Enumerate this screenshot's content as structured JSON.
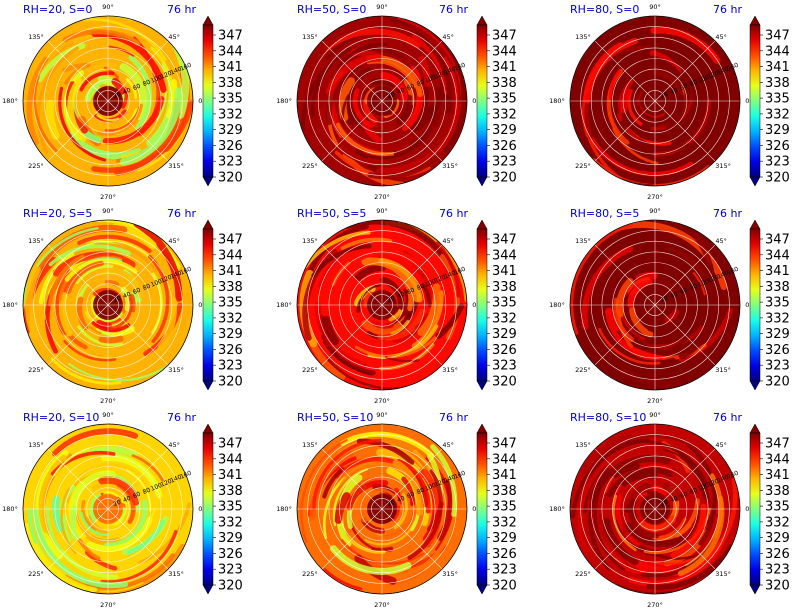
{
  "chart_data": {
    "type": "heatmap",
    "projection": "polar",
    "layout": "3x3 grid",
    "colormap": "jet",
    "colorbar": {
      "ticks": [
        "347",
        "344",
        "341",
        "338",
        "335",
        "332",
        "329",
        "326",
        "323",
        "320"
      ],
      "range": [
        320,
        350
      ],
      "extend": "both"
    },
    "angular_ticks": [
      "90°",
      "45°",
      "0°",
      "315°",
      "270°",
      "225°",
      "180°",
      "135°"
    ],
    "radial_ticks": [
      "20",
      "40",
      "60",
      "80",
      "100",
      "120",
      "140",
      "160"
    ],
    "panels": [
      {
        "title": "RH=20, S=0",
        "time": "76 hr",
        "dominant_value": 341,
        "core_value": 350
      },
      {
        "title": "RH=50, S=0",
        "time": "76 hr",
        "dominant_value": 349,
        "core_value": 350
      },
      {
        "title": "RH=80, S=0",
        "time": "76 hr",
        "dominant_value": 350,
        "core_value": 350
      },
      {
        "title": "RH=20, S=5",
        "time": "76 hr",
        "dominant_value": 341,
        "core_value": 350
      },
      {
        "title": "RH=50, S=5",
        "time": "76 hr",
        "dominant_value": 346,
        "core_value": 350
      },
      {
        "title": "RH=80, S=5",
        "time": "76 hr",
        "dominant_value": 350,
        "core_value": 350
      },
      {
        "title": "RH=20, S=10",
        "time": "76 hr",
        "dominant_value": 340,
        "core_value": 343
      },
      {
        "title": "RH=50, S=10",
        "time": "76 hr",
        "dominant_value": 343,
        "core_value": 350
      },
      {
        "title": "RH=80, S=10",
        "time": "76 hr",
        "dominant_value": 348,
        "core_value": 350
      }
    ]
  }
}
